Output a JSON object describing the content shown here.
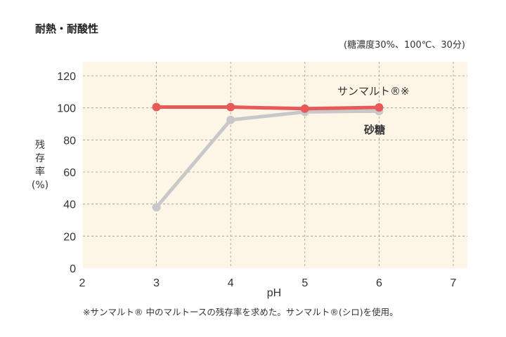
{
  "title": "耐熱・耐酸性",
  "conditions": "(糖濃度30%、100℃、30分)",
  "footnote": "※サンマルト® 中のマルトースの残存率を求めた。サンマルト®(シロ)を使用。",
  "chart_data": {
    "type": "line",
    "title": "耐熱・耐酸性",
    "xlabel": "pH",
    "ylabel": [
      "残",
      "存",
      "率",
      "(%)"
    ],
    "xlim": [
      2,
      7.2
    ],
    "ylim": [
      0,
      130
    ],
    "xticks": [
      2,
      3,
      4,
      5,
      6,
      7
    ],
    "yticks": [
      0,
      20,
      40,
      60,
      80,
      100,
      120
    ],
    "grid": true,
    "series": [
      {
        "name": "サンマルト®※",
        "color": "#e85a5a",
        "x": [
          3,
          4,
          5,
          6
        ],
        "y": [
          100.5,
          100.5,
          99.5,
          100.3
        ]
      },
      {
        "name": "砂糖",
        "color": "#c8c8c8",
        "x": [
          3,
          4,
          5,
          6
        ],
        "y": [
          38,
          92.5,
          97.5,
          98
        ]
      }
    ]
  }
}
